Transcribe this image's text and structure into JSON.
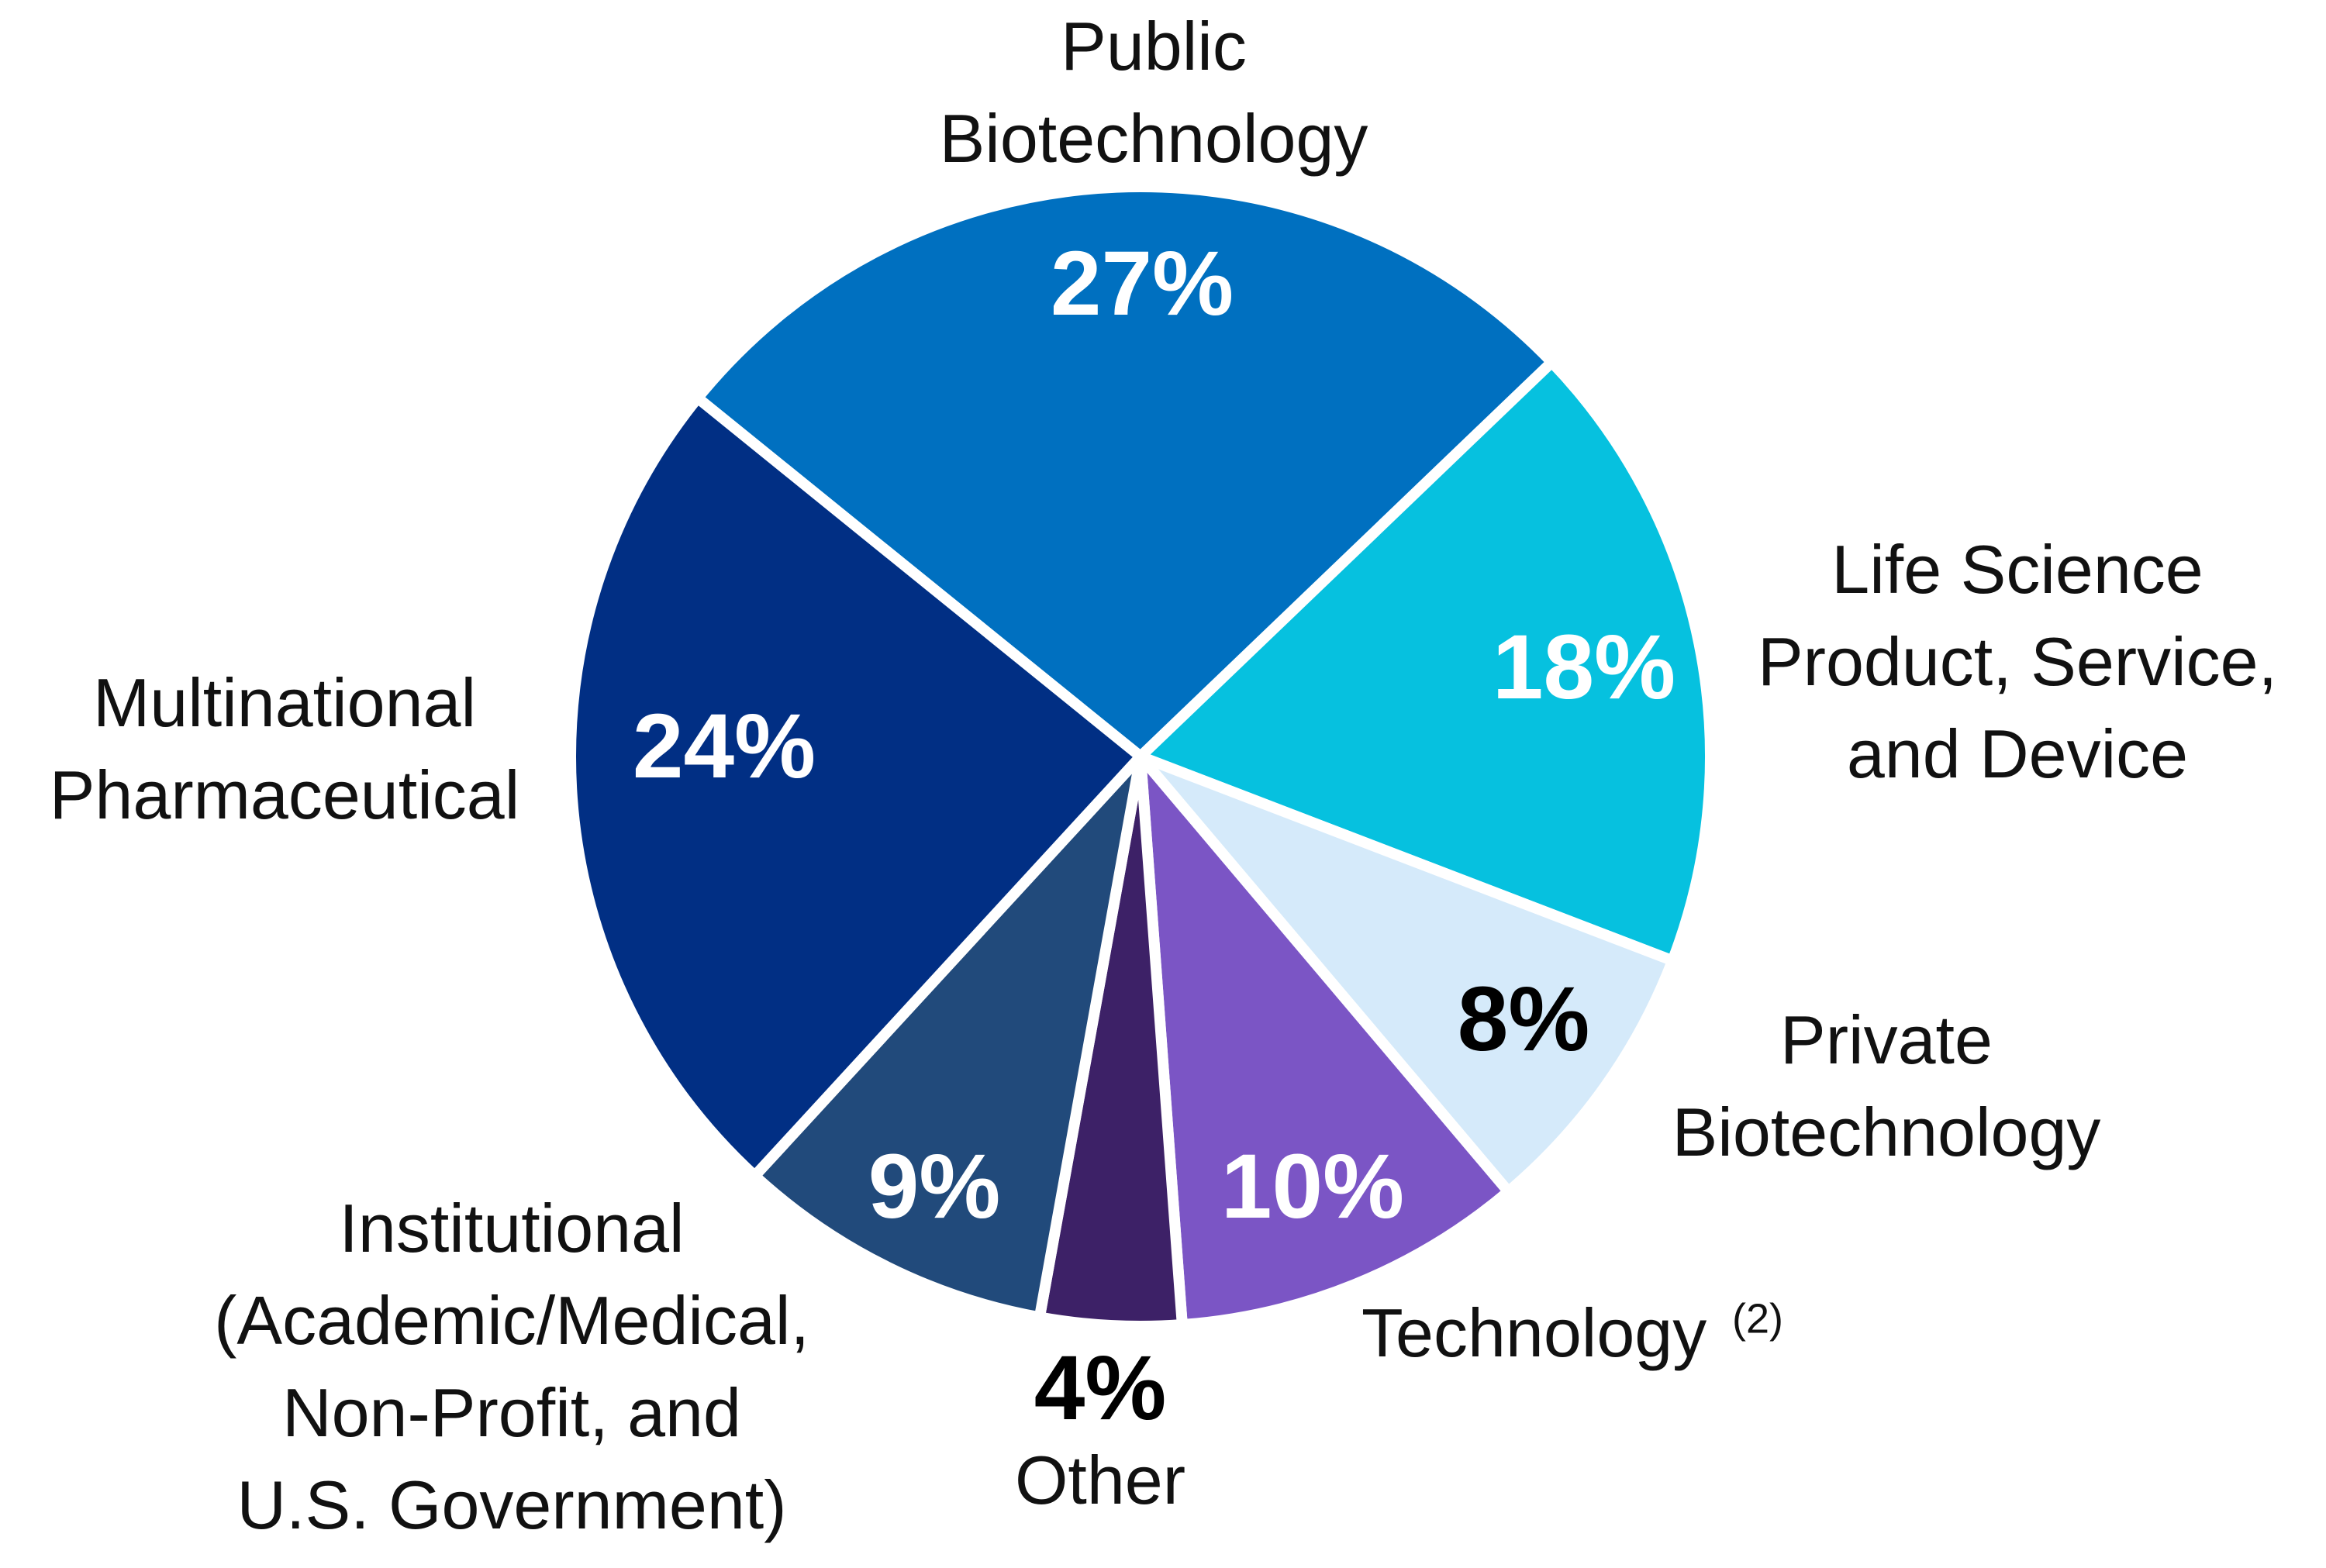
{
  "chart_data": {
    "type": "pie",
    "categories": [
      "Public\nBiotechnology",
      "Life Science\nProduct, Service,\nand Device",
      "Private\nBiotechnology",
      "Technology",
      "Other",
      "Institutional\n(Academic/Medical,\nNon-Profit, and\nU.S. Government)",
      "Multinational\nPharmaceutical"
    ],
    "category_superscripts": [
      null,
      null,
      null,
      "(2)",
      null,
      null,
      null
    ],
    "values": [
      27,
      18,
      8,
      10,
      4,
      9,
      24
    ],
    "value_labels": [
      "27%",
      "18%",
      "8%",
      "10%",
      "4%",
      "9%",
      "24%"
    ],
    "colors": [
      "#0070c0",
      "#06c1df",
      "#d5eafa",
      "#7b55c5",
      "#3d2167",
      "#214a7b",
      "#012f84"
    ],
    "value_label_colors": [
      "#ffffff",
      "#ffffff",
      "#000000",
      "#ffffff",
      "#000000",
      "#ffffff",
      "#ffffff"
    ]
  }
}
